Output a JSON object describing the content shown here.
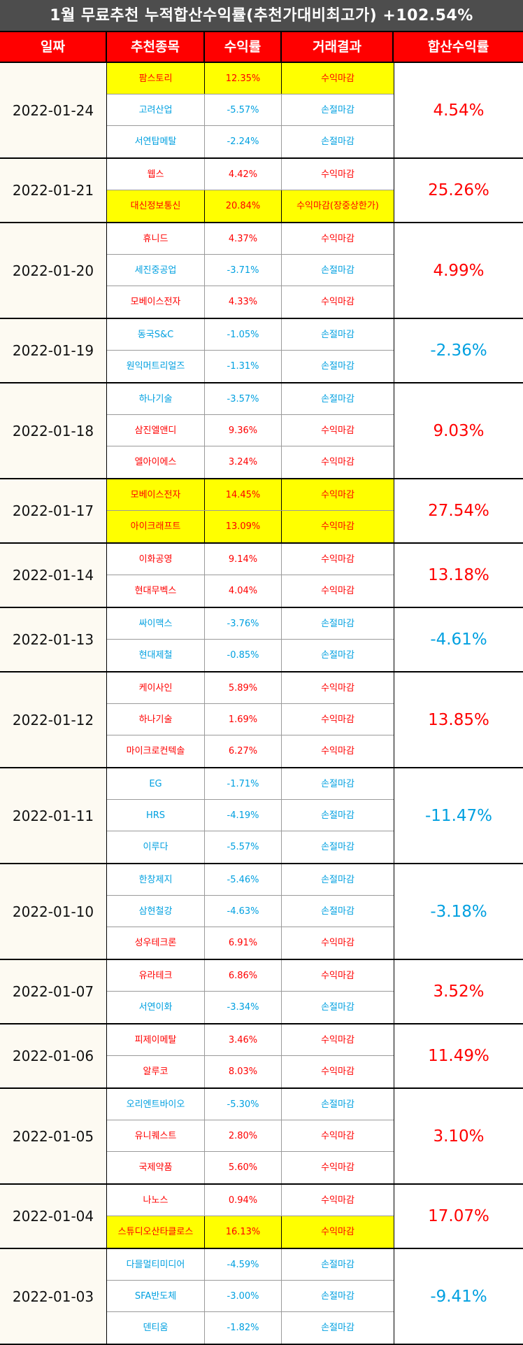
{
  "title": "1월 무료추천 누적합산수익률(추천가대비최고가) +102.54%",
  "headers": [
    "일짜",
    "추천종목",
    "수익률",
    "거래결과",
    "합산수익률"
  ],
  "colors": {
    "positive": "#ff0000",
    "negative": "#00a0e0",
    "highlight": "#ffff00",
    "header_bg": "#ff0000",
    "title_bg": "#4d4d4d"
  },
  "groups": [
    {
      "date": "2022-01-24",
      "total": "4.54%",
      "total_sign": "pos",
      "items": [
        {
          "name": "팜스토리",
          "ret": "12.35%",
          "result": "수익마감",
          "sign": "pos",
          "hl": true
        },
        {
          "name": "고려산업",
          "ret": "-5.57%",
          "result": "손절마감",
          "sign": "neg",
          "hl": false
        },
        {
          "name": "서연탑메탈",
          "ret": "-2.24%",
          "result": "손절마감",
          "sign": "neg",
          "hl": false
        }
      ]
    },
    {
      "date": "2022-01-21",
      "total": "25.26%",
      "total_sign": "pos",
      "items": [
        {
          "name": "웹스",
          "ret": "4.42%",
          "result": "수익마감",
          "sign": "pos",
          "hl": false
        },
        {
          "name": "대신정보통신",
          "ret": "20.84%",
          "result": "수익마감(장중상한가)",
          "sign": "pos",
          "hl": true
        }
      ]
    },
    {
      "date": "2022-01-20",
      "total": "4.99%",
      "total_sign": "pos",
      "items": [
        {
          "name": "휴니드",
          "ret": "4.37%",
          "result": "수익마감",
          "sign": "pos",
          "hl": false
        },
        {
          "name": "세진중공업",
          "ret": "-3.71%",
          "result": "손절마감",
          "sign": "neg",
          "hl": false
        },
        {
          "name": "모베이스전자",
          "ret": "4.33%",
          "result": "수익마감",
          "sign": "pos",
          "hl": false
        }
      ]
    },
    {
      "date": "2022-01-19",
      "total": "-2.36%",
      "total_sign": "neg",
      "items": [
        {
          "name": "동국S&C",
          "ret": "-1.05%",
          "result": "손절마감",
          "sign": "neg",
          "hl": false
        },
        {
          "name": "원익머트리얼즈",
          "ret": "-1.31%",
          "result": "손절마감",
          "sign": "neg",
          "hl": false
        }
      ]
    },
    {
      "date": "2022-01-18",
      "total": "9.03%",
      "total_sign": "pos",
      "items": [
        {
          "name": "하나기술",
          "ret": "-3.57%",
          "result": "손절마감",
          "sign": "neg",
          "hl": false
        },
        {
          "name": "삼진엘앤디",
          "ret": "9.36%",
          "result": "수익마감",
          "sign": "pos",
          "hl": false
        },
        {
          "name": "엘아이에스",
          "ret": "3.24%",
          "result": "수익마감",
          "sign": "pos",
          "hl": false
        }
      ]
    },
    {
      "date": "2022-01-17",
      "total": "27.54%",
      "total_sign": "pos",
      "items": [
        {
          "name": "모베이스전자",
          "ret": "14.45%",
          "result": "수익마감",
          "sign": "pos",
          "hl": true
        },
        {
          "name": "아이크래프트",
          "ret": "13.09%",
          "result": "수익마감",
          "sign": "pos",
          "hl": true
        }
      ]
    },
    {
      "date": "2022-01-14",
      "total": "13.18%",
      "total_sign": "pos",
      "items": [
        {
          "name": "이화공영",
          "ret": "9.14%",
          "result": "수익마감",
          "sign": "pos",
          "hl": false
        },
        {
          "name": "현대무벡스",
          "ret": "4.04%",
          "result": "수익마감",
          "sign": "pos",
          "hl": false
        }
      ]
    },
    {
      "date": "2022-01-13",
      "total": "-4.61%",
      "total_sign": "neg",
      "items": [
        {
          "name": "싸이맥스",
          "ret": "-3.76%",
          "result": "손절마감",
          "sign": "neg",
          "hl": false
        },
        {
          "name": "현대제철",
          "ret": "-0.85%",
          "result": "손절마감",
          "sign": "neg",
          "hl": false
        }
      ]
    },
    {
      "date": "2022-01-12",
      "total": "13.85%",
      "total_sign": "pos",
      "items": [
        {
          "name": "케이사인",
          "ret": "5.89%",
          "result": "수익마감",
          "sign": "pos",
          "hl": false
        },
        {
          "name": "하나기술",
          "ret": "1.69%",
          "result": "수익마감",
          "sign": "pos",
          "hl": false
        },
        {
          "name": "마이크로컨텍솔",
          "ret": "6.27%",
          "result": "수익마감",
          "sign": "pos",
          "hl": false
        }
      ]
    },
    {
      "date": "2022-01-11",
      "total": "-11.47%",
      "total_sign": "neg",
      "items": [
        {
          "name": "EG",
          "ret": "-1.71%",
          "result": "손절마감",
          "sign": "neg",
          "hl": false
        },
        {
          "name": "HRS",
          "ret": "-4.19%",
          "result": "손절마감",
          "sign": "neg",
          "hl": false
        },
        {
          "name": "이루다",
          "ret": "-5.57%",
          "result": "손절마감",
          "sign": "neg",
          "hl": false
        }
      ]
    },
    {
      "date": "2022-01-10",
      "total": "-3.18%",
      "total_sign": "neg",
      "items": [
        {
          "name": "한창제지",
          "ret": "-5.46%",
          "result": "손절마감",
          "sign": "neg",
          "hl": false
        },
        {
          "name": "삼현철강",
          "ret": "-4.63%",
          "result": "손절마감",
          "sign": "neg",
          "hl": false
        },
        {
          "name": "성우테크론",
          "ret": "6.91%",
          "result": "수익마감",
          "sign": "pos",
          "hl": false
        }
      ]
    },
    {
      "date": "2022-01-07",
      "total": "3.52%",
      "total_sign": "pos",
      "items": [
        {
          "name": "유라테크",
          "ret": "6.86%",
          "result": "수익마감",
          "sign": "pos",
          "hl": false
        },
        {
          "name": "서연이화",
          "ret": "-3.34%",
          "result": "손절마감",
          "sign": "neg",
          "hl": false
        }
      ]
    },
    {
      "date": "2022-01-06",
      "total": "11.49%",
      "total_sign": "pos",
      "items": [
        {
          "name": "피제이메탈",
          "ret": "3.46%",
          "result": "수익마감",
          "sign": "pos",
          "hl": false
        },
        {
          "name": "알루코",
          "ret": "8.03%",
          "result": "수익마감",
          "sign": "pos",
          "hl": false
        }
      ]
    },
    {
      "date": "2022-01-05",
      "total": "3.10%",
      "total_sign": "pos",
      "items": [
        {
          "name": "오리엔트바이오",
          "ret": "-5.30%",
          "result": "손절마감",
          "sign": "neg",
          "hl": false
        },
        {
          "name": "유니퀘스트",
          "ret": "2.80%",
          "result": "수익마감",
          "sign": "pos",
          "hl": false
        },
        {
          "name": "국제약품",
          "ret": "5.60%",
          "result": "수익마감",
          "sign": "pos",
          "hl": false
        }
      ]
    },
    {
      "date": "2022-01-04",
      "total": "17.07%",
      "total_sign": "pos",
      "items": [
        {
          "name": "나노스",
          "ret": "0.94%",
          "result": "수익마감",
          "sign": "pos",
          "hl": false
        },
        {
          "name": "스튜디오산타클로스",
          "ret": "16.13%",
          "result": "수익마감",
          "sign": "pos",
          "hl": true
        }
      ]
    },
    {
      "date": "2022-01-03",
      "total": "-9.41%",
      "total_sign": "neg",
      "items": [
        {
          "name": "다믈멀티미디어",
          "ret": "-4.59%",
          "result": "손절마감",
          "sign": "neg",
          "hl": false
        },
        {
          "name": "SFA반도체",
          "ret": "-3.00%",
          "result": "손절마감",
          "sign": "neg",
          "hl": false
        },
        {
          "name": "덴티움",
          "ret": "-1.82%",
          "result": "손절마감",
          "sign": "neg",
          "hl": false
        }
      ]
    }
  ]
}
